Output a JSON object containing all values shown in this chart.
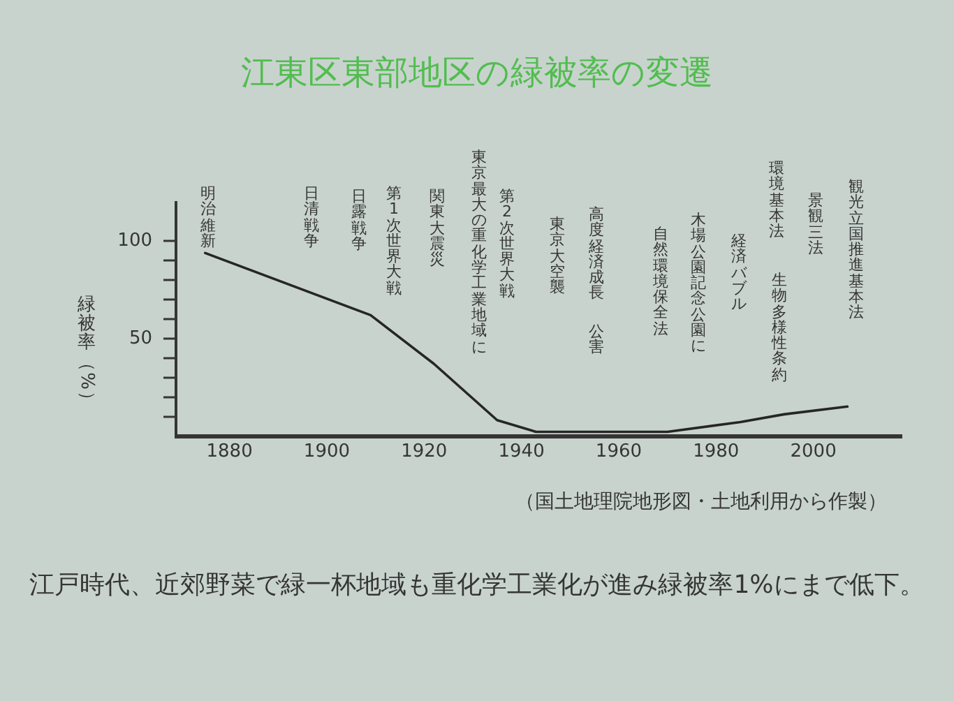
{
  "chart_data": {
    "type": "line",
    "title": "江東区東部地区の緑被率の変遷",
    "ylabel": "緑被率（%）",
    "x": [
      1875,
      1909,
      1922,
      1935,
      1943,
      1970,
      1985,
      1994,
      2007
    ],
    "values": [
      94,
      62,
      37,
      8,
      2,
      2,
      7,
      11,
      15
    ],
    "color": "#262626",
    "xlim": [
      1869,
      2018
    ],
    "xticks": [
      1880,
      1900,
      1920,
      1940,
      1960,
      1980,
      2000
    ],
    "ylim": [
      0,
      120
    ],
    "yticks": [
      {
        "value": 10,
        "label": null
      },
      {
        "value": 20,
        "label": null
      },
      {
        "value": 30,
        "label": null
      },
      {
        "value": 40,
        "label": null
      },
      50,
      {
        "value": 60,
        "label": null
      },
      {
        "value": 70,
        "label": null
      },
      {
        "value": 80,
        "label": null
      },
      {
        "value": 90,
        "label": null
      },
      100
    ],
    "annotations": [
      "明治維新",
      "日清戦争",
      "日露戦争",
      "第1次世界大戦",
      "関東大震災",
      "東京最大の重化学工業地域に",
      "第2次世界大戦",
      "東京大空襲",
      "高度経済成長",
      "公害",
      "自然環境保全法",
      "木場公園記念公園に",
      "経済バブル",
      "環境基本法",
      "生物多様性条約",
      "景観三法",
      "観光立国推進基本法",
      "（国土地理院地形図・土地利用から作製）",
      "江戸時代、近郊野菜で緑一杯地域も重化学工業化が進み緑被率1%にまで低下。"
    ]
  }
}
